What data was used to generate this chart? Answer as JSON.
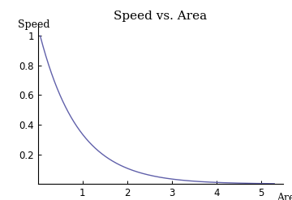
{
  "title": "Speed vs. Area",
  "xlabel": "Area",
  "ylabel": "Speed",
  "xlim": [
    0,
    5.5
  ],
  "ylim": [
    0,
    1.08
  ],
  "xticks": [
    1,
    2,
    3,
    4,
    5
  ],
  "yticks": [
    0.2,
    0.4,
    0.6,
    0.8,
    1.0
  ],
  "line_color": "#6060aa",
  "background_color": "#ffffff",
  "title_fontsize": 11,
  "label_fontsize": 9,
  "tick_fontsize": 8.5,
  "decay": 1.15
}
